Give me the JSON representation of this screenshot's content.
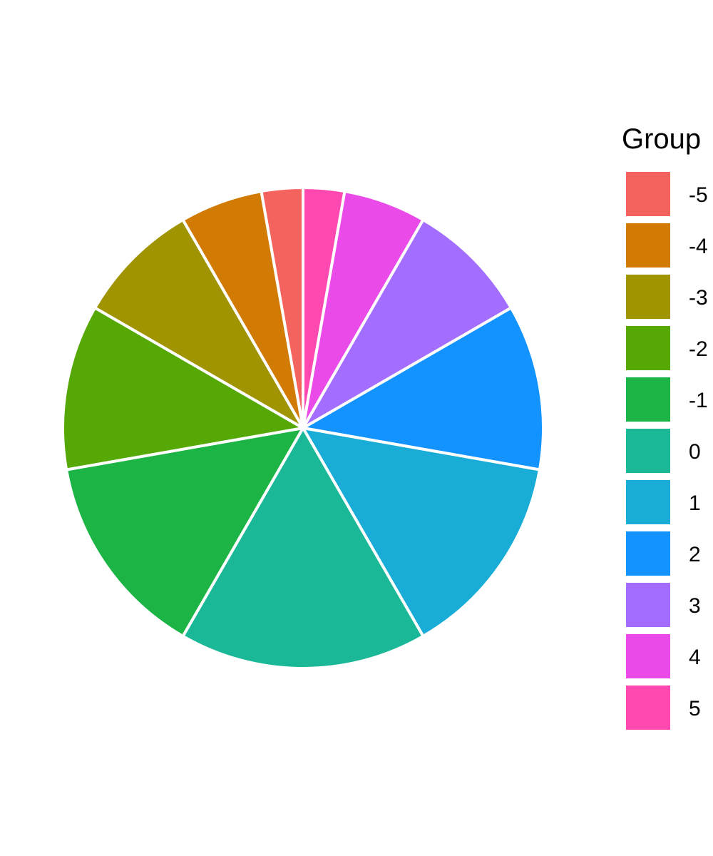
{
  "chart_data": {
    "type": "pie",
    "title": "",
    "legend_title": "Group",
    "legend_position": "right",
    "start": "top",
    "direction": "clockwise",
    "categories": [
      "-5",
      "-4",
      "-3",
      "-2",
      "-1",
      "0",
      "1",
      "2",
      "3",
      "4",
      "5"
    ],
    "values": [
      1,
      2,
      3,
      4,
      5,
      6,
      5,
      4,
      3,
      2,
      1
    ],
    "colors": [
      "#F8766D",
      "#D39200",
      "#93AA00",
      "#00BA38",
      "#00C19F",
      "#00B9E3",
      "#00A5FF",
      "#619CFF",
      "#DB72FB",
      "#FF61C3",
      "#FF61C3"
    ],
    "slice_colors": [
      "#F5635F",
      "#D17A04",
      "#A09403",
      "#56A805",
      "#1BB445",
      "#1AB897",
      "#19ACD6",
      "#1393FF",
      "#A36EFF",
      "#E94AE8",
      "#FF48B0"
    ],
    "clockwise_order": [
      "5",
      "4",
      "3",
      "2",
      "1",
      "0",
      "-1",
      "-2",
      "-3",
      "-4",
      "-5"
    ]
  }
}
